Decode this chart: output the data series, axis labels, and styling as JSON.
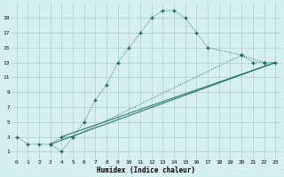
{
  "xlabel": "Humidex (Indice chaleur)",
  "background_color": "#d6f0f0",
  "grid_color": "#b0cccc",
  "line_color": "#1a6b5a",
  "xlim": [
    -0.5,
    23.5
  ],
  "ylim": [
    0,
    21
  ],
  "xticks": [
    0,
    1,
    2,
    3,
    4,
    5,
    6,
    7,
    8,
    9,
    10,
    11,
    12,
    13,
    14,
    15,
    16,
    17,
    18,
    19,
    20,
    21,
    22,
    23
  ],
  "yticks": [
    1,
    3,
    5,
    7,
    9,
    11,
    13,
    15,
    17,
    19
  ],
  "curve1_x": [
    0,
    1,
    2,
    3,
    4,
    5,
    6,
    7,
    8,
    9,
    10,
    11,
    12,
    13,
    14,
    15,
    16,
    17,
    20,
    21,
    22
  ],
  "curve1_y": [
    3,
    2,
    2,
    2,
    1,
    3,
    5,
    8,
    10,
    13,
    15,
    17,
    19,
    20,
    20,
    19,
    17,
    15,
    14,
    13,
    13
  ],
  "curve2_x": [
    3,
    4,
    5,
    20,
    22,
    23
  ],
  "curve2_y": [
    2,
    3,
    3,
    14,
    13,
    13
  ],
  "line1_x": [
    3,
    23
  ],
  "line1_y": [
    2,
    13
  ],
  "line2_x": [
    4,
    23
  ],
  "line2_y": [
    3,
    13
  ]
}
